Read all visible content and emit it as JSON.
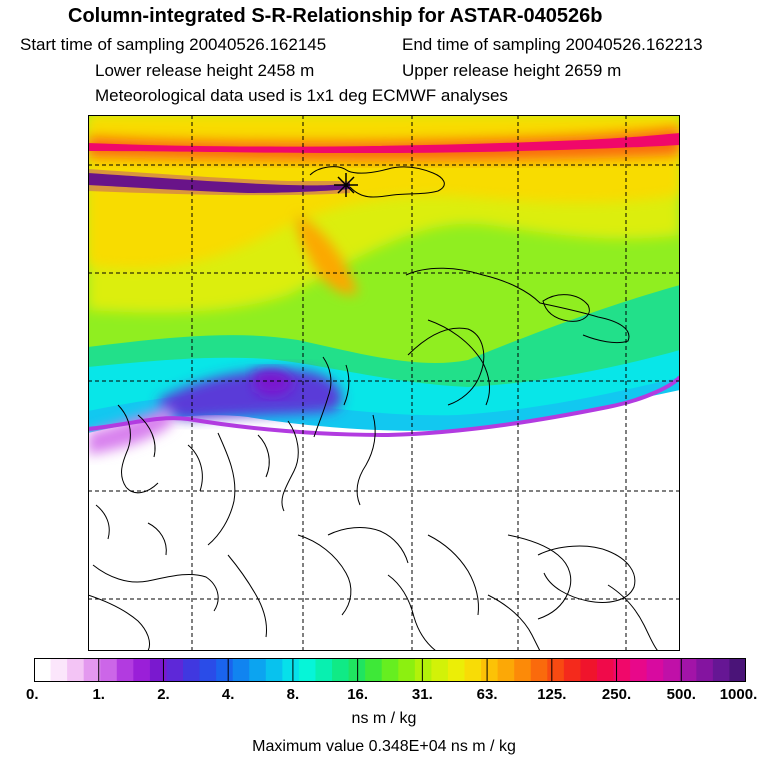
{
  "header": {
    "title": "Column-integrated S-R-Relationship for ASTAR-040526b",
    "start_time": "Start time of sampling 20040526.162145",
    "end_time": "End time of sampling 20040526.162213",
    "lower_height": "Lower release height 2458 m",
    "upper_height": "Upper release height 2659 m",
    "met_data": "Meteorological data used is 1x1 deg ECMWF analyses"
  },
  "colorbar": {
    "tick_labels": [
      "0.",
      "1.",
      "2.",
      "4.",
      "8.",
      "16.",
      "31.",
      "63.",
      "125.",
      "250.",
      "500.",
      "1000."
    ],
    "colors": [
      "#ffffff",
      "#fbe6fb",
      "#f3c4f5",
      "#e399ef",
      "#cc66e8",
      "#b23be0",
      "#9a1fd8",
      "#7a19cf",
      "#5e28d8",
      "#4038e0",
      "#2a4ce8",
      "#1a64ee",
      "#1184f0",
      "#0ca4f0",
      "#08c2ee",
      "#06e0ea",
      "#06f5d8",
      "#08f0b0",
      "#10ea86",
      "#20e460",
      "#3ee838",
      "#66ee20",
      "#8cf010",
      "#b2f20a",
      "#d2f208",
      "#ecee06",
      "#f8dc06",
      "#fcc206",
      "#fca806",
      "#fc8a08",
      "#fa6a0c",
      "#f84a12",
      "#f42a1c",
      "#f0142c",
      "#f00a4a",
      "#f0086a",
      "#e8088a",
      "#d80aa0",
      "#c010a8",
      "#a214a8",
      "#8414a0",
      "#661694",
      "#4a1478"
    ],
    "units": "ns m / kg"
  },
  "footer": {
    "max_value": "Maximum value  0.348E+04 ns m / kg"
  }
}
